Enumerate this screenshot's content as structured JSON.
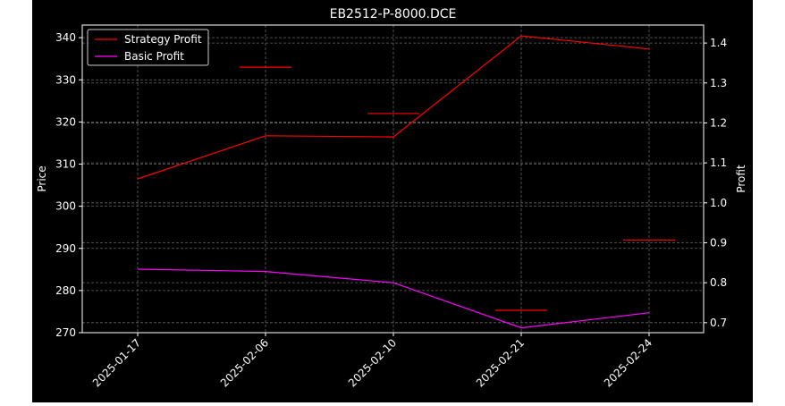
{
  "chart_data": {
    "type": "line",
    "title": "EB2512-P-8000.DCE",
    "ylabel": "Price",
    "y2label": "Profit",
    "categories": [
      "2025-01-17",
      "2025-02-06",
      "2025-02-10",
      "2025-02-21",
      "2025-02-24"
    ],
    "ylim": [
      270,
      343
    ],
    "yticks": [
      270,
      280,
      290,
      300,
      310,
      320,
      330,
      340
    ],
    "y2lim": [
      0.675,
      1.445
    ],
    "y2ticks": [
      0.7,
      0.8,
      0.9,
      1.0,
      1.1,
      1.2,
      1.3,
      1.4
    ],
    "y2tick_labels": [
      "0.7",
      "0.8",
      "0.9",
      "1.0",
      "1.1",
      "1.2",
      "1.3",
      "1.4"
    ],
    "grid": true,
    "legend_position": "upper-left",
    "price_markers": {
      "axis": "left",
      "color": "#ff0000",
      "values": [
        null,
        333,
        322,
        275.3,
        292
      ]
    },
    "series": [
      {
        "name": "Strategy Profit",
        "axis": "right",
        "color": "#ff0000",
        "values": [
          1.06,
          1.168,
          1.165,
          1.418,
          1.385
        ]
      },
      {
        "name": "Basic Profit",
        "axis": "right",
        "color": "#ff00ff",
        "values": [
          0.834,
          0.828,
          0.8,
          0.687,
          0.725
        ]
      }
    ]
  }
}
